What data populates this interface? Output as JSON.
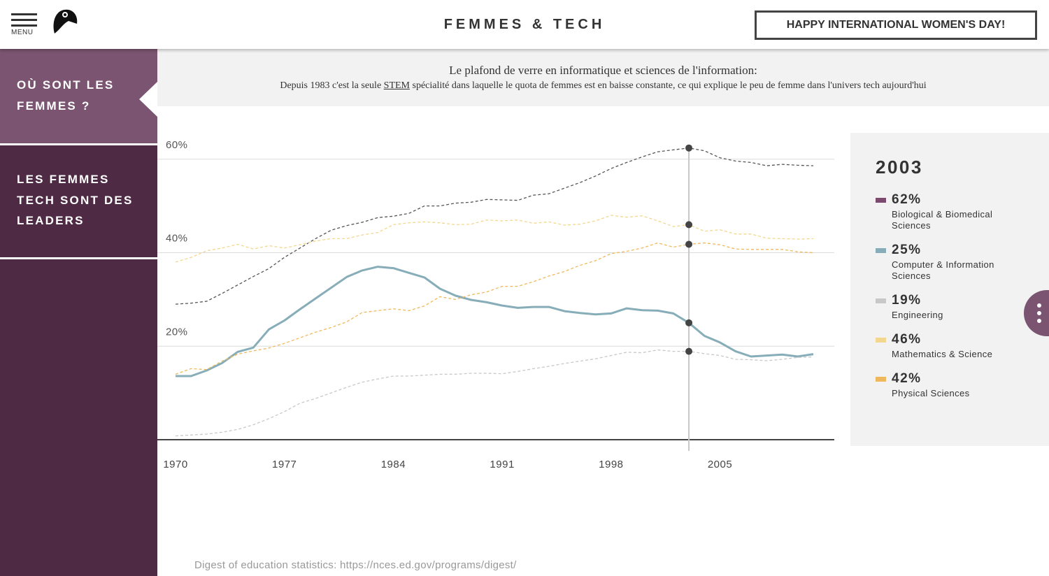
{
  "header": {
    "menu": "MENU",
    "title": "FEMMES & TECH",
    "button": "HAPPY INTERNATIONAL WOMEN'S DAY!"
  },
  "sidebar": {
    "items": [
      "OÙ SONT LES FEMMES ?",
      "LES FEMMES TECH SONT DES LEADERS"
    ]
  },
  "intro": {
    "title": "Le plafond de verre en informatique et sciences de l'information:",
    "text_before": "Depuis 1983 c'est la seule ",
    "link": "STEM",
    "text_after": " spécialité dans laquelle le quota de femmes est en baisse constante, ce qui explique le peu de femme dans l'univers tech aujourd'hui"
  },
  "chart_data": {
    "type": "line",
    "x": [
      1970,
      1971,
      1972,
      1973,
      1974,
      1975,
      1976,
      1977,
      1978,
      1979,
      1980,
      1981,
      1982,
      1983,
      1984,
      1985,
      1986,
      1987,
      1988,
      1989,
      1990,
      1991,
      1992,
      1993,
      1994,
      1995,
      1996,
      1997,
      1998,
      1999,
      2000,
      2001,
      2002,
      2003,
      2004,
      2005,
      2006,
      2007,
      2008,
      2009,
      2010,
      2011
    ],
    "xlim": [
      1970,
      2011
    ],
    "xticks": [
      1970,
      1977,
      1984,
      1991,
      1998,
      2005
    ],
    "ylim": [
      0,
      64
    ],
    "yticks": [
      {
        "value": 20,
        "label": "20%"
      },
      {
        "value": 40,
        "label": "40%"
      },
      {
        "value": 60,
        "label": "60%"
      }
    ],
    "grid": true,
    "series": [
      {
        "name": "Biological & Biomedical Sciences",
        "color": "#555555",
        "legend_color": "#7b4a6e",
        "dashed": true,
        "values": [
          29.0,
          29.2,
          29.6,
          31.3,
          33.1,
          34.9,
          36.6,
          39.0,
          41.0,
          43.0,
          44.8,
          45.8,
          46.5,
          47.5,
          47.8,
          48.4,
          50.0,
          50.0,
          50.6,
          50.8,
          51.4,
          51.3,
          51.2,
          52.3,
          52.6,
          53.8,
          55.0,
          56.4,
          58.0,
          59.3,
          60.5,
          61.6,
          62.0,
          62.4,
          61.8,
          60.3,
          59.6,
          59.3,
          58.6,
          58.9,
          58.7,
          58.6
        ]
      },
      {
        "name": "Computer & Information Sciences",
        "color": "#86adb8",
        "legend_color": "#86adb8",
        "dashed": false,
        "values": [
          13.6,
          13.6,
          14.8,
          16.4,
          18.8,
          19.7,
          23.6,
          25.5,
          27.9,
          30.2,
          32.5,
          34.8,
          36.2,
          37.0,
          36.7,
          35.7,
          34.7,
          32.3,
          30.8,
          29.9,
          29.4,
          28.7,
          28.2,
          28.4,
          28.4,
          27.5,
          27.1,
          26.8,
          27.0,
          28.1,
          27.7,
          27.6,
          27.0,
          25.0,
          22.2,
          20.8,
          18.9,
          17.8,
          18.0,
          18.2,
          17.8,
          18.3
        ]
      },
      {
        "name": "Engineering",
        "color": "#c8c8c8",
        "legend_color": "#c8c8c8",
        "dashed": true,
        "values": [
          0.8,
          1.0,
          1.2,
          1.6,
          2.2,
          3.2,
          4.5,
          6.0,
          7.8,
          8.8,
          10.0,
          11.2,
          12.3,
          13.0,
          13.6,
          13.6,
          13.8,
          14.0,
          14.0,
          14.2,
          14.2,
          14.1,
          14.6,
          15.2,
          15.7,
          16.3,
          16.8,
          17.3,
          18.0,
          18.7,
          18.6,
          19.2,
          18.9,
          18.9,
          18.4,
          18.0,
          17.2,
          17.1,
          16.9,
          17.2,
          17.6,
          17.7
        ]
      },
      {
        "name": "Mathematics & Science",
        "color": "#f3d78e",
        "legend_color": "#f3d78e",
        "dashed": true,
        "values": [
          38.0,
          39.0,
          40.4,
          41.0,
          41.8,
          40.8,
          41.5,
          41.0,
          41.7,
          42.5,
          43.0,
          43.0,
          43.8,
          44.3,
          46.0,
          46.4,
          46.6,
          46.4,
          46.0,
          46.1,
          47.0,
          46.8,
          47.0,
          46.3,
          46.6,
          45.9,
          46.1,
          46.8,
          48.0,
          47.6,
          47.9,
          46.8,
          45.6,
          46.0,
          44.6,
          44.9,
          44.0,
          44.0,
          43.1,
          43.0,
          42.9,
          43.0
        ]
      },
      {
        "name": "Physical Sciences",
        "color": "#f0b85c",
        "legend_color": "#f0b85c",
        "dashed": true,
        "values": [
          14.0,
          15.2,
          15.0,
          16.8,
          18.3,
          19.0,
          19.6,
          20.6,
          21.8,
          23.0,
          24.0,
          25.2,
          27.2,
          27.6,
          28.0,
          27.6,
          28.6,
          30.6,
          30.0,
          31.0,
          31.6,
          32.8,
          32.8,
          33.8,
          35.0,
          36.0,
          37.3,
          38.3,
          39.8,
          40.3,
          41.0,
          42.1,
          41.2,
          41.8,
          42.1,
          41.7,
          40.8,
          40.7,
          40.7,
          40.7,
          40.2,
          40.0
        ]
      }
    ],
    "highlight": {
      "x": 2003,
      "value_labels": [
        "62%",
        "25%",
        "19%",
        "46%",
        "42%"
      ]
    }
  },
  "source": "Digest of education statistics: https://nces.ed.gov/programs/digest/"
}
